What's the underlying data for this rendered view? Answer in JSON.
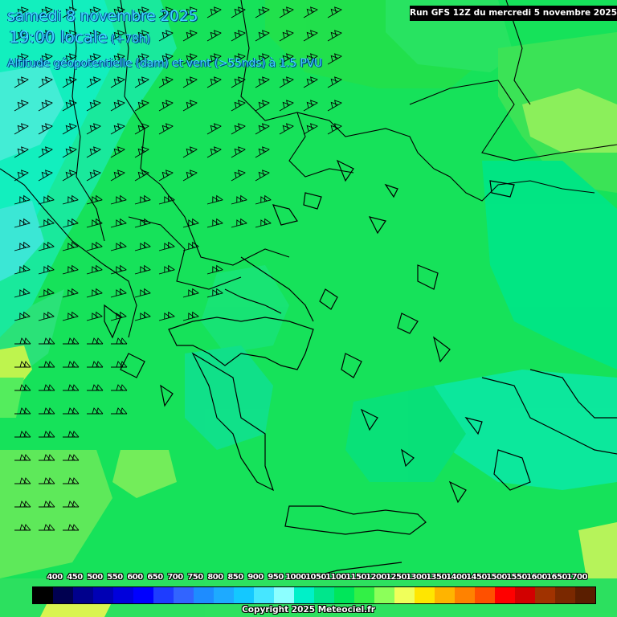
{
  "header": {
    "date_line": "samedi 8 novembre 2025",
    "time_line": "19:00 locale",
    "lead_time": "(+78h)",
    "field_line": "Altitude géopotentielle (dam) et vent (>55nds) à 1.5 PVU"
  },
  "run_info": "Run GFS 12Z du mercredi 5 novembre 2025",
  "legend": {
    "labels": [
      "400",
      "450",
      "500",
      "550",
      "600",
      "650",
      "700",
      "750",
      "800",
      "850",
      "900",
      "950",
      "1000",
      "1050",
      "1100",
      "1150",
      "1200",
      "1250",
      "1300",
      "1350",
      "1400",
      "1450",
      "1500",
      "1550",
      "1600",
      "1650",
      "1700"
    ],
    "colors": [
      "#000000",
      "#000050",
      "#00008c",
      "#0000b4",
      "#0000dc",
      "#0000ff",
      "#1e3cff",
      "#3264ff",
      "#1e8cff",
      "#1eaaff",
      "#14c8ff",
      "#46e6ff",
      "#8cffff",
      "#00f0c8",
      "#00e68c",
      "#00e65a",
      "#32f046",
      "#8cff5a",
      "#f0ff5a",
      "#ffe600",
      "#ffb400",
      "#ff8200",
      "#ff5000",
      "#ff0000",
      "#d20000",
      "#a03200",
      "#7a2800",
      "#5a1e00"
    ]
  },
  "copyright": "Copyright 2025 Meteociel.fr",
  "map": {
    "background_color": "#16e25a",
    "region": "Greece and Aegean Sea"
  }
}
